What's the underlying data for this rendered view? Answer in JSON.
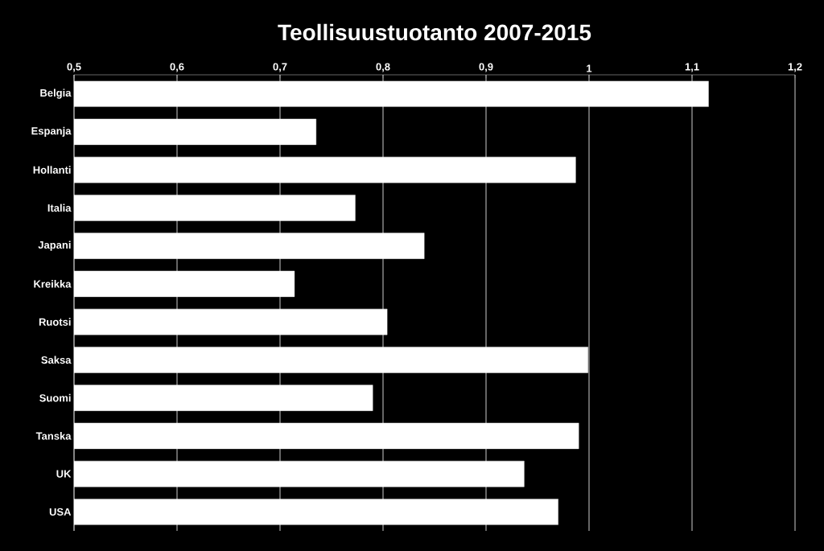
{
  "chart_data": {
    "type": "bar",
    "orientation": "horizontal",
    "title": "Teollisuustuotanto 2007-2015",
    "categories": [
      "Belgia",
      "Espanja",
      "Hollanti",
      "Italia",
      "Japani",
      "Kreikka",
      "Ruotsi",
      "Saksa",
      "Suomi",
      "Tanska",
      "UK",
      "USA"
    ],
    "values": [
      1.116,
      0.735,
      0.987,
      0.773,
      0.84,
      0.714,
      0.804,
      0.999,
      0.79,
      0.99,
      0.937,
      0.97
    ],
    "color": "#ffffff",
    "xlim": [
      0.5,
      1.2
    ],
    "xticks": [
      {
        "value": 0.5,
        "label": "0,5"
      },
      {
        "value": 0.6,
        "label": "0,6"
      },
      {
        "value": 0.7,
        "label": "0,7"
      },
      {
        "value": 0.8,
        "label": "0,8"
      },
      {
        "value": 0.9,
        "label": "0,9"
      },
      1,
      {
        "value": 1.1,
        "label": "1,1"
      },
      {
        "value": 1.2,
        "label": "1,2"
      }
    ],
    "grid": "x"
  }
}
